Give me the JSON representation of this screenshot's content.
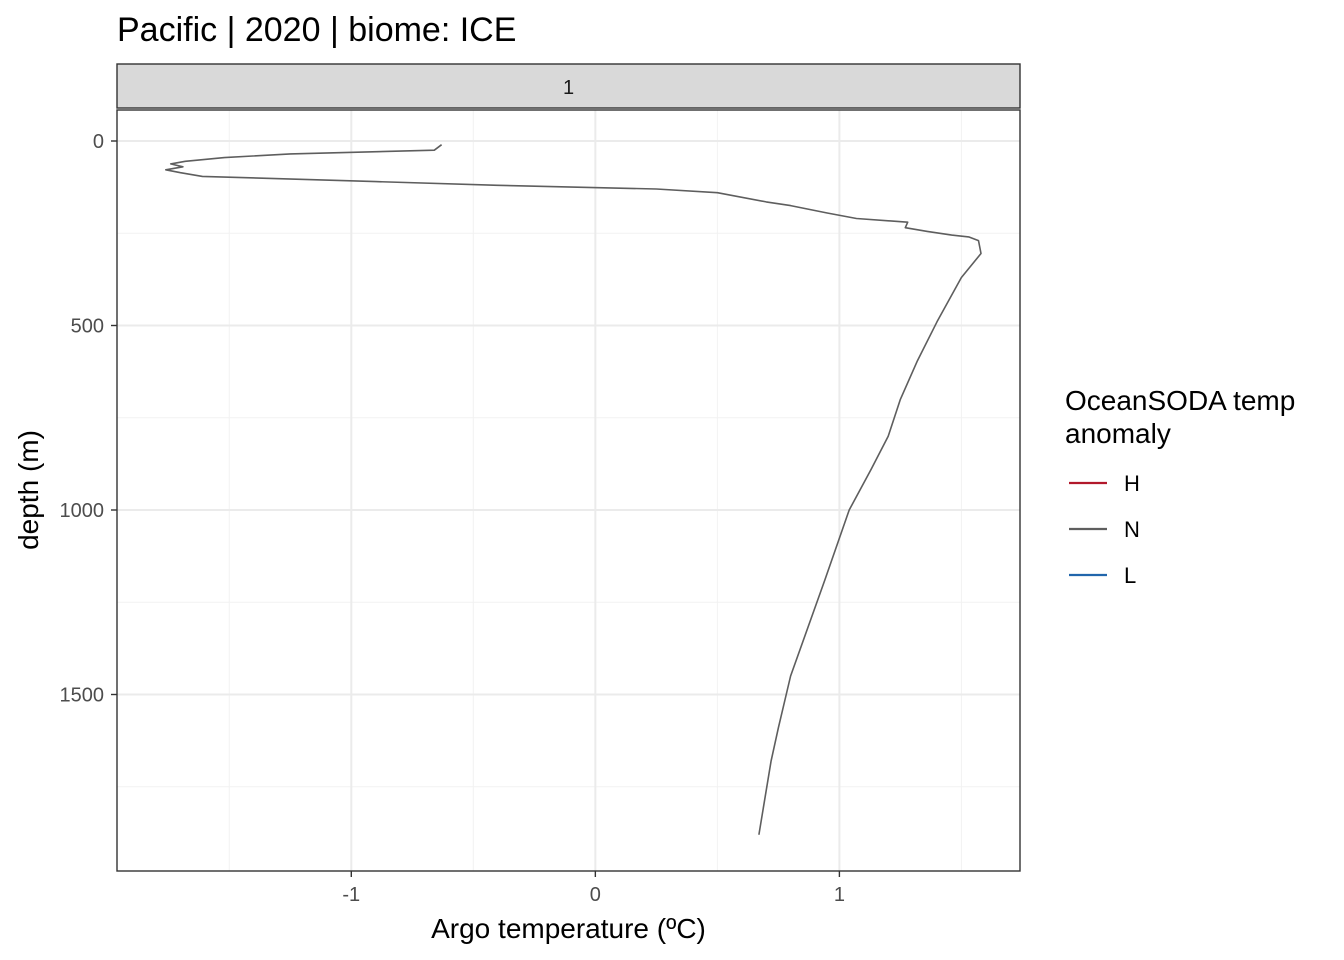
{
  "chart_data": {
    "type": "line",
    "title": "Pacific | 2020 | biome: ICE",
    "facet_label": "1",
    "xlabel": "Argo temperature (ºC)",
    "ylabel": "depth (m)",
    "xlim": [
      -1.96,
      1.74
    ],
    "ylim": [
      0,
      2000
    ],
    "y_reversed": true,
    "x_ticks": [
      -1,
      0,
      1
    ],
    "x_tick_labels": [
      "-1",
      "0",
      "1"
    ],
    "y_ticks": [
      0,
      500,
      1000,
      1500
    ],
    "y_tick_labels": [
      "0",
      "500",
      "1000",
      "1500"
    ],
    "grid": true,
    "legend": {
      "title_lines": [
        "OceanSODA temp",
        "anomaly"
      ],
      "position": "right",
      "entries": [
        {
          "label": "H",
          "color": "#b2182b"
        },
        {
          "label": "N",
          "color": "#5e5e5e"
        },
        {
          "label": "L",
          "color": "#2166ac"
        }
      ]
    },
    "series": [
      {
        "name": "N",
        "color": "#5e5e5e",
        "points": [
          [
            -0.63,
            10
          ],
          [
            -0.66,
            25
          ],
          [
            -1.25,
            35
          ],
          [
            -1.52,
            45
          ],
          [
            -1.68,
            55
          ],
          [
            -1.74,
            62
          ],
          [
            -1.69,
            70
          ],
          [
            -1.76,
            78
          ],
          [
            -1.7,
            86
          ],
          [
            -1.61,
            96
          ],
          [
            -0.9,
            110
          ],
          [
            -0.4,
            120
          ],
          [
            0.25,
            130
          ],
          [
            0.5,
            140
          ],
          [
            0.7,
            165
          ],
          [
            0.8,
            175
          ],
          [
            0.95,
            195
          ],
          [
            1.07,
            210
          ],
          [
            1.28,
            220
          ],
          [
            1.27,
            235
          ],
          [
            1.36,
            245
          ],
          [
            1.46,
            255
          ],
          [
            1.53,
            260
          ],
          [
            1.57,
            270
          ],
          [
            1.58,
            305
          ],
          [
            1.5,
            370
          ],
          [
            1.4,
            490
          ],
          [
            1.32,
            595
          ],
          [
            1.25,
            700
          ],
          [
            1.2,
            800
          ],
          [
            1.13,
            890
          ],
          [
            1.04,
            1000
          ],
          [
            0.94,
            1190
          ],
          [
            0.8,
            1450
          ],
          [
            0.75,
            1590
          ],
          [
            0.72,
            1680
          ],
          [
            0.67,
            1880
          ]
        ]
      }
    ]
  }
}
